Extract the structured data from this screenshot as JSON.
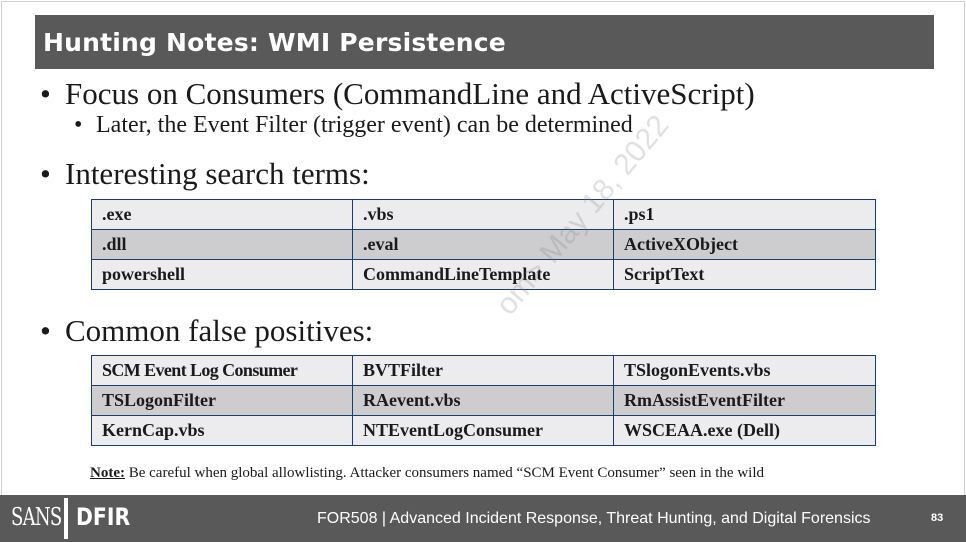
{
  "title": "Hunting Notes: WMI Persistence",
  "bullets": {
    "b1": "Focus on Consumers (CommandLine and ActiveScript)",
    "b1_sub": "Later, the Event Filter (trigger event) can be determined",
    "b2": "Interesting search terms:",
    "b3": "Common false positives:"
  },
  "search_terms": {
    "rows": [
      [
        ".exe",
        ".vbs",
        ".ps1"
      ],
      [
        ".dll",
        ".eval",
        "ActiveXObject"
      ],
      [
        "powershell",
        "CommandLineTemplate",
        "ScriptText"
      ]
    ]
  },
  "false_positives": {
    "rows": [
      [
        "SCM Event Log Consumer",
        "BVTFilter",
        "TSlogonEvents.vbs"
      ],
      [
        "TSLogonFilter",
        "RAevent.vbs",
        "RmAssistEventFilter"
      ],
      [
        "KernCap.vbs",
        "NTEventLogConsumer",
        "WSCEAA.exe (Dell)"
      ]
    ]
  },
  "note": {
    "label": "Note:",
    "text": " Be careful when global allowlisting. Attacker consumers named “SCM Event Consumer” seen in the wild"
  },
  "watermark": "om> May 18, 2022",
  "footer": {
    "logo_left": "SANS",
    "logo_right": "DFIR",
    "course": "FOR508  |  Advanced Incident Response, Threat Hunting, and Digital Forensics",
    "page": "83"
  },
  "colors": {
    "title_bg": "#595959",
    "row_light": "#ececee",
    "row_dark": "#cdcdd0",
    "table_border": "#1f3b6e"
  }
}
